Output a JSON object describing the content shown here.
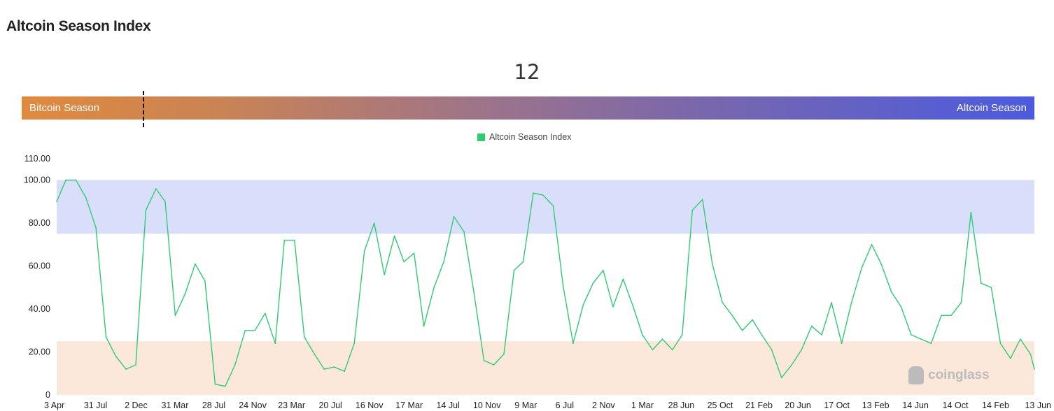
{
  "page_title": "Altcoin Season Index",
  "current_value": "12",
  "gauge": {
    "left_label": "Bitcoin Season",
    "right_label": "Altcoin Season",
    "value": 12,
    "min": 0,
    "max": 100,
    "left_color": "#e08a3e",
    "right_color": "#4b5bdf"
  },
  "watermark": "coinglass",
  "chart_data": {
    "type": "line",
    "title": "",
    "xlabel": "",
    "ylabel": "",
    "legend": {
      "entries": [
        "Altcoin Season Index"
      ],
      "placement": "top-center"
    },
    "ylim": [
      0,
      110
    ],
    "xlim": [
      "2017-04-03",
      "2025-06-13"
    ],
    "y_ticks": [
      "0",
      "20.00",
      "40.00",
      "60.00",
      "80.00",
      "100.00",
      "110.00"
    ],
    "x_ticks": [
      {
        "date": "2017-04-03",
        "label": "3 Apr"
      },
      {
        "date": "2017-07-31",
        "label": "31 Jul"
      },
      {
        "date": "2017-12-02",
        "label": "2 Dec"
      },
      {
        "date": "2018-03-31",
        "label": "31 Mar"
      },
      {
        "date": "2018-07-28",
        "label": "28 Jul"
      },
      {
        "date": "2018-11-24",
        "label": "24 Nov"
      },
      {
        "date": "2019-03-23",
        "label": "23 Mar"
      },
      {
        "date": "2019-07-20",
        "label": "20 Jul"
      },
      {
        "date": "2019-11-16",
        "label": "16 Nov"
      },
      {
        "date": "2020-03-17",
        "label": "17 Mar"
      },
      {
        "date": "2020-07-14",
        "label": "14 Jul"
      },
      {
        "date": "2020-11-10",
        "label": "10 Nov"
      },
      {
        "date": "2021-03-09",
        "label": "9 Mar"
      },
      {
        "date": "2021-07-06",
        "label": "6 Jul"
      },
      {
        "date": "2021-11-02",
        "label": "2 Nov"
      },
      {
        "date": "2022-03-01",
        "label": "1 Mar"
      },
      {
        "date": "2022-06-28",
        "label": "28 Jun"
      },
      {
        "date": "2022-10-25",
        "label": "25 Oct"
      },
      {
        "date": "2023-02-21",
        "label": "21 Feb"
      },
      {
        "date": "2023-06-20",
        "label": "20 Jun"
      },
      {
        "date": "2023-10-17",
        "label": "17 Oct"
      },
      {
        "date": "2024-02-13",
        "label": "13 Feb"
      },
      {
        "date": "2024-06-14",
        "label": "14 Jun"
      },
      {
        "date": "2024-10-14",
        "label": "14 Oct"
      },
      {
        "date": "2025-02-14",
        "label": "14 Feb"
      },
      {
        "date": "2025-06-13",
        "label": "13 Jun"
      }
    ],
    "bands": [
      {
        "from": 75,
        "to": 100,
        "color": "#d9dffa"
      },
      {
        "from": 0,
        "to": 25,
        "color": "#fbe8da"
      }
    ],
    "grid": false,
    "series": [
      {
        "name": "Altcoin Season Index",
        "color": "#2ecc71",
        "x": [
          "2017-04-03",
          "2017-05-01",
          "2017-06-01",
          "2017-07-01",
          "2017-08-01",
          "2017-09-01",
          "2017-10-01",
          "2017-11-01",
          "2017-12-01",
          "2018-01-01",
          "2018-02-01",
          "2018-03-01",
          "2018-04-01",
          "2018-05-01",
          "2018-06-01",
          "2018-07-01",
          "2018-08-01",
          "2018-09-01",
          "2018-10-01",
          "2018-11-01",
          "2018-12-01",
          "2019-01-01",
          "2019-02-01",
          "2019-03-01",
          "2019-04-01",
          "2019-05-01",
          "2019-06-01",
          "2019-07-01",
          "2019-08-01",
          "2019-09-01",
          "2019-10-01",
          "2019-11-01",
          "2019-12-01",
          "2020-01-01",
          "2020-02-01",
          "2020-03-01",
          "2020-04-01",
          "2020-05-01",
          "2020-06-01",
          "2020-07-01",
          "2020-08-01",
          "2020-09-01",
          "2020-10-01",
          "2020-11-01",
          "2020-12-01",
          "2021-01-01",
          "2021-02-01",
          "2021-03-01",
          "2021-04-01",
          "2021-05-01",
          "2021-06-01",
          "2021-07-01",
          "2021-08-01",
          "2021-09-01",
          "2021-10-01",
          "2021-11-01",
          "2021-12-01",
          "2022-01-01",
          "2022-02-01",
          "2022-03-01",
          "2022-04-01",
          "2022-05-01",
          "2022-06-01",
          "2022-07-01",
          "2022-08-01",
          "2022-09-01",
          "2022-10-01",
          "2022-11-01",
          "2022-12-01",
          "2023-01-01",
          "2023-02-01",
          "2023-03-01",
          "2023-04-01",
          "2023-05-01",
          "2023-06-01",
          "2023-07-01",
          "2023-08-01",
          "2023-09-01",
          "2023-10-01",
          "2023-11-01",
          "2023-12-01",
          "2024-01-01",
          "2024-02-01",
          "2024-03-01",
          "2024-04-01",
          "2024-05-01",
          "2024-06-01",
          "2024-07-01",
          "2024-08-01",
          "2024-09-01",
          "2024-10-01",
          "2024-11-01",
          "2024-12-01",
          "2025-01-01",
          "2025-02-01",
          "2025-03-01",
          "2025-04-01",
          "2025-05-01",
          "2025-06-01",
          "2025-06-13"
        ],
        "values": [
          90,
          100,
          100,
          92,
          78,
          27,
          18,
          12,
          14,
          86,
          96,
          90,
          37,
          47,
          61,
          53,
          5,
          4,
          14,
          30,
          30,
          38,
          24,
          72,
          72,
          27,
          19,
          12,
          13,
          11,
          24,
          67,
          80,
          56,
          74,
          62,
          66,
          32,
          50,
          62,
          83,
          76,
          48,
          16,
          14,
          19,
          58,
          62,
          94,
          93,
          88,
          51,
          24,
          42,
          52,
          58,
          41,
          54,
          41,
          28,
          21,
          26,
          21,
          28,
          86,
          91,
          61,
          43,
          37,
          30,
          35,
          28,
          21,
          8,
          14,
          21,
          32,
          28,
          43,
          24,
          43,
          59,
          70,
          61,
          48,
          41,
          28,
          26,
          24,
          37,
          37,
          43,
          85,
          52,
          50,
          24,
          17,
          26,
          19,
          12
        ]
      }
    ]
  }
}
